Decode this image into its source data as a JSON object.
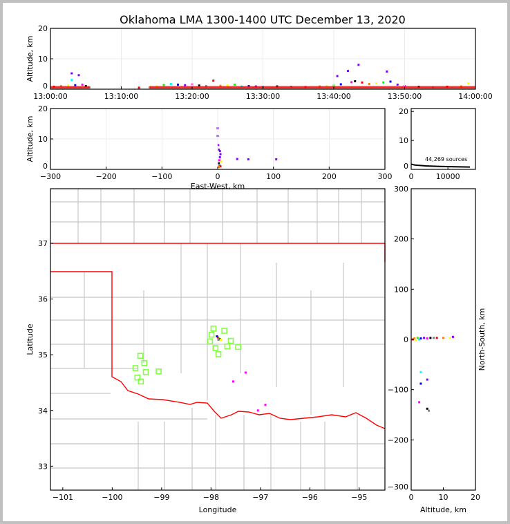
{
  "title": "Oklahoma LMA 1300-1400 UTC December 13, 2020",
  "colors": {
    "border": "#ff0000",
    "county": "#c8c8c8",
    "station": "#80ff40",
    "grid": "#ebebeb"
  },
  "chart_data": [
    {
      "id": "time-height",
      "type": "scatter",
      "xlabel": "",
      "ylabel": "Altitude, km",
      "xlim": [
        "13:00:00",
        "14:00:00"
      ],
      "ylim": [
        0,
        20
      ],
      "xticks": [
        "13:00:00",
        "13:10:00",
        "13:20:00",
        "13:30:00",
        "13:40:00",
        "13:50:00",
        "14:00:00"
      ],
      "yticks": [
        0,
        10,
        20
      ],
      "grid": true,
      "points": [
        [
          "13:00:30",
          0.8
        ],
        [
          "13:01:30",
          1.0
        ],
        [
          "13:02:30",
          1.2
        ],
        [
          "13:03:00",
          5.2
        ],
        [
          "13:03:00",
          3.0
        ],
        [
          "13:03:30",
          1.3
        ],
        [
          "13:04:00",
          4.6
        ],
        [
          "13:04:30",
          1.5
        ],
        [
          "13:05:00",
          1.0
        ],
        [
          "13:05:30",
          0.6
        ],
        [
          "13:12:30",
          0.5
        ],
        [
          "13:14:00",
          0.6
        ],
        [
          "13:15:00",
          0.9
        ],
        [
          "13:16:00",
          1.4
        ],
        [
          "13:17:00",
          1.7
        ],
        [
          "13:18:00",
          1.5
        ],
        [
          "13:19:00",
          1.3
        ],
        [
          "13:20:00",
          1.6
        ],
        [
          "13:21:00",
          1.2
        ],
        [
          "13:22:00",
          1.0
        ],
        [
          "13:23:00",
          2.8
        ],
        [
          "13:24:00",
          1.1
        ],
        [
          "13:25:00",
          1.2
        ],
        [
          "13:26:00",
          1.5
        ],
        [
          "13:27:00",
          0.9
        ],
        [
          "13:28:00",
          1.0
        ],
        [
          "13:29:00",
          0.9
        ],
        [
          "13:30:00",
          0.8
        ],
        [
          "13:32:00",
          0.9
        ],
        [
          "13:34:00",
          0.8
        ],
        [
          "13:36:00",
          0.7
        ],
        [
          "13:38:00",
          0.9
        ],
        [
          "13:39:00",
          1.0
        ],
        [
          "13:40:00",
          1.2
        ],
        [
          "13:40:30",
          4.3
        ],
        [
          "13:41:00",
          1.6
        ],
        [
          "13:42:00",
          6.0
        ],
        [
          "13:42:30",
          2.3
        ],
        [
          "13:43:00",
          2.6
        ],
        [
          "13:43:30",
          8.0
        ],
        [
          "13:44:00",
          2.2
        ],
        [
          "13:45:00",
          1.7
        ],
        [
          "13:46:00",
          1.9
        ],
        [
          "13:47:00",
          2.2
        ],
        [
          "13:47:30",
          5.8
        ],
        [
          "13:48:00",
          2.5
        ],
        [
          "13:49:00",
          1.5
        ],
        [
          "13:50:00",
          1.0
        ],
        [
          "13:52:00",
          0.8
        ],
        [
          "13:54:00",
          0.6
        ],
        [
          "13:56:00",
          0.8
        ],
        [
          "13:58:00",
          0.9
        ],
        [
          "13:59:00",
          1.9
        ]
      ]
    },
    {
      "id": "east-west-altitude",
      "type": "scatter",
      "xlabel": "East-West, km",
      "ylabel": "Altitude, km",
      "xlim": [
        -300,
        300
      ],
      "ylim": [
        0,
        20
      ],
      "xticks": [
        -300,
        -200,
        -100,
        0,
        100,
        200,
        300
      ],
      "yticks": [
        0,
        10,
        20
      ],
      "grid": true,
      "points": [
        [
          0,
          13.5
        ],
        [
          0,
          11
        ],
        [
          1,
          8
        ],
        [
          2,
          6.5
        ],
        [
          4,
          6
        ],
        [
          5,
          5
        ],
        [
          4,
          4
        ],
        [
          3,
          3
        ],
        [
          2,
          2
        ],
        [
          3,
          1.5
        ],
        [
          5,
          1
        ],
        [
          2,
          0.8
        ],
        [
          6,
          2.5
        ],
        [
          35,
          3.4
        ],
        [
          55,
          3.3
        ],
        [
          105,
          3.3
        ]
      ]
    },
    {
      "id": "altitude-histogram",
      "type": "line",
      "annotation": "44,269 sources",
      "xlim": [
        0,
        17500
      ],
      "ylim": [
        0,
        21
      ],
      "xticks": [
        0,
        10000
      ],
      "yticks": [
        0,
        10,
        20
      ],
      "points": [
        [
          0,
          1.8
        ],
        [
          1000,
          1.5
        ],
        [
          4000,
          1.2
        ],
        [
          8000,
          1.0
        ],
        [
          12000,
          0.9
        ],
        [
          16000,
          0.8
        ]
      ]
    },
    {
      "id": "plan-view-map",
      "type": "scatter",
      "xlabel": "Longitude",
      "ylabel": "Latitude",
      "xlim": [
        -101.25,
        -94.48
      ],
      "ylim": [
        32.57,
        37.98
      ],
      "xticks": [
        -101,
        -100,
        -99,
        -98,
        -97,
        -96,
        -95
      ],
      "yticks": [
        33,
        34,
        35,
        36,
        37
      ],
      "stations": [
        [
          -97.95,
          35.47
        ],
        [
          -97.73,
          35.43
        ],
        [
          -97.99,
          35.36
        ],
        [
          -98.02,
          35.24
        ],
        [
          -97.6,
          35.25
        ],
        [
          -97.91,
          35.12
        ],
        [
          -97.67,
          35.15
        ],
        [
          -97.45,
          35.14
        ],
        [
          -97.85,
          35.01
        ],
        [
          -99.43,
          34.98
        ],
        [
          -99.35,
          34.85
        ],
        [
          -99.53,
          34.76
        ],
        [
          -99.32,
          34.69
        ],
        [
          -99.06,
          34.7
        ],
        [
          -99.49,
          34.59
        ],
        [
          -99.42,
          34.52
        ]
      ],
      "sources": [
        [
          -97.86,
          35.31
        ],
        [
          -97.84,
          35.29
        ],
        [
          -97.82,
          35.28
        ],
        [
          -97.85,
          35.27
        ],
        [
          -97.8,
          35.27
        ],
        [
          -97.88,
          35.33
        ],
        [
          -97.3,
          34.68
        ],
        [
          -97.55,
          34.52
        ],
        [
          -97.05,
          34.0
        ],
        [
          -96.9,
          34.1
        ]
      ]
    },
    {
      "id": "altitude-north-south",
      "type": "scatter",
      "xlabel": "Altitude, km",
      "ylabel": "North-South, km",
      "xlim": [
        0,
        20
      ],
      "ylim": [
        -300,
        300
      ],
      "xticks": [
        0,
        10,
        20
      ],
      "yticks": [
        -300,
        -200,
        -100,
        0,
        100,
        200,
        300
      ],
      "points": [
        [
          0.5,
          0
        ],
        [
          1,
          2
        ],
        [
          1.5,
          -2
        ],
        [
          2,
          3
        ],
        [
          2.5,
          0
        ],
        [
          3,
          2
        ],
        [
          4,
          3
        ],
        [
          5,
          2
        ],
        [
          6,
          3
        ],
        [
          7,
          3
        ],
        [
          8,
          3
        ],
        [
          10,
          3
        ],
        [
          12,
          3
        ],
        [
          13,
          5
        ],
        [
          3,
          -65
        ],
        [
          3,
          -88
        ],
        [
          5,
          -80
        ],
        [
          2.5,
          -125
        ],
        [
          5,
          -138
        ],
        [
          5.5,
          -142
        ]
      ]
    }
  ]
}
